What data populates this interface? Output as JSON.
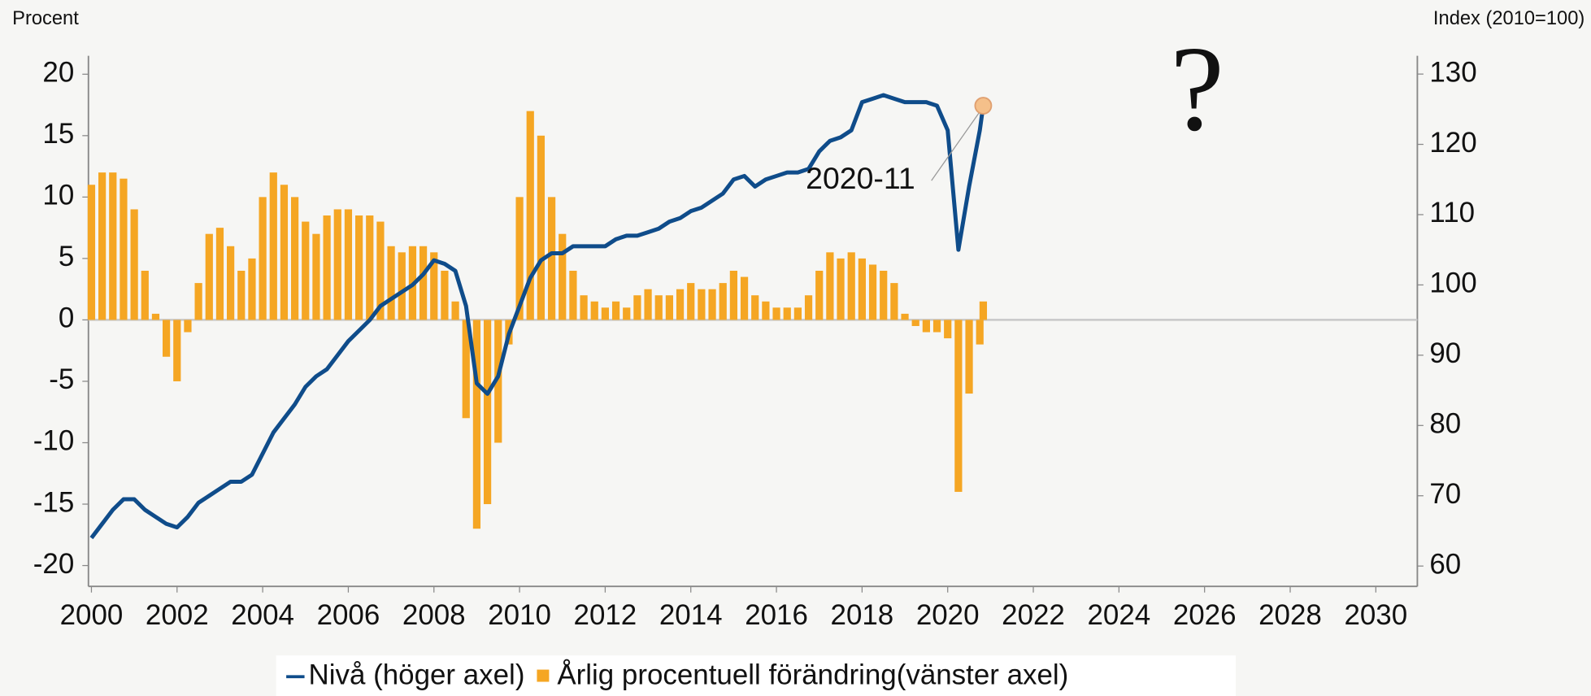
{
  "chart_data": {
    "type": "combo",
    "left_axis_label": "Procent",
    "right_axis_label": "Index (2010=100)",
    "annotations": [
      {
        "text": "2020-11"
      },
      {
        "text": "?"
      }
    ],
    "x": [
      2000,
      2000.25,
      2000.5,
      2000.75,
      2001,
      2001.25,
      2001.5,
      2001.75,
      2002,
      2002.25,
      2002.5,
      2002.75,
      2003,
      2003.25,
      2003.5,
      2003.75,
      2004,
      2004.25,
      2004.5,
      2004.75,
      2005,
      2005.25,
      2005.5,
      2005.75,
      2006,
      2006.25,
      2006.5,
      2006.75,
      2007,
      2007.25,
      2007.5,
      2007.75,
      2008,
      2008.25,
      2008.5,
      2008.75,
      2009,
      2009.25,
      2009.5,
      2009.75,
      2010,
      2010.25,
      2010.5,
      2010.75,
      2011,
      2011.25,
      2011.5,
      2011.75,
      2012,
      2012.25,
      2012.5,
      2012.75,
      2013,
      2013.25,
      2013.5,
      2013.75,
      2014,
      2014.25,
      2014.5,
      2014.75,
      2015,
      2015.25,
      2015.5,
      2015.75,
      2016,
      2016.25,
      2016.5,
      2016.75,
      2017,
      2017.25,
      2017.5,
      2017.75,
      2018,
      2018.25,
      2018.5,
      2018.75,
      2019,
      2019.25,
      2019.5,
      2019.75,
      2020,
      2020.25,
      2020.5,
      2020.75,
      2020.83
    ],
    "series": [
      {
        "name": "Nivå (höger axel)",
        "type": "line",
        "axis": "y2",
        "color": "#0f4c8a",
        "values": [
          64,
          66,
          68,
          69.5,
          69.5,
          68,
          67,
          66,
          65.5,
          67,
          69,
          70,
          71,
          72,
          72,
          73,
          76,
          79,
          81,
          83,
          85.5,
          87,
          88,
          90,
          92,
          93.5,
          95,
          97,
          98,
          99,
          100,
          101.5,
          103.5,
          103,
          102,
          97,
          86,
          84.5,
          87,
          93,
          97,
          101,
          103.5,
          104.5,
          104.5,
          105.5,
          105.5,
          105.5,
          105.5,
          106.5,
          107,
          107,
          107.5,
          108,
          109,
          109.5,
          110.5,
          111,
          112,
          113,
          115,
          115.5,
          114,
          115,
          115.5,
          116,
          116,
          116.5,
          119,
          120.5,
          121,
          122,
          126,
          126.5,
          127,
          126.5,
          126,
          126,
          126,
          125.5,
          122,
          105,
          114,
          122,
          125.5
        ]
      },
      {
        "name": "Årlig procentuell förändring(vänster axel)",
        "type": "bar",
        "color": "#f5a623",
        "values": [
          11,
          12,
          12,
          11.5,
          9,
          4,
          0.5,
          -3,
          -5,
          -1,
          3,
          7,
          7.5,
          6,
          4,
          5,
          10,
          12,
          11,
          10,
          8,
          7,
          8.5,
          9,
          9,
          8.5,
          8.5,
          8,
          6,
          5.5,
          6,
          6,
          5.5,
          4,
          1.5,
          -8,
          -17,
          -15,
          -10,
          -2,
          10,
          17,
          15,
          10,
          7,
          4,
          2,
          1.5,
          1,
          1.5,
          1,
          2,
          2.5,
          2,
          2,
          2.5,
          3,
          2.5,
          2.5,
          3,
          4,
          3.5,
          2,
          1.5,
          1,
          1,
          1,
          2,
          4,
          5.5,
          5,
          5.5,
          5,
          4.5,
          4,
          3,
          0.5,
          -0.5,
          -1,
          -1,
          -1.5,
          -14,
          -6,
          -2,
          1.5
        ]
      }
    ],
    "xlim": [
      1999.93,
      2030.97
    ],
    "xticks": [
      2000,
      2002,
      2004,
      2006,
      2008,
      2010,
      2012,
      2014,
      2016,
      2018,
      2020,
      2022,
      2024,
      2026,
      2028,
      2030
    ],
    "ylim": [
      -21.7,
      21.5
    ],
    "yticks": [
      -20,
      -15,
      -10,
      -5,
      0,
      5,
      10,
      15,
      20
    ],
    "y2lim": [
      57.1,
      132.6
    ],
    "y2ticks": [
      60,
      70,
      80,
      90,
      100,
      110,
      120,
      130
    ],
    "grid": false,
    "legend": "bottom"
  }
}
